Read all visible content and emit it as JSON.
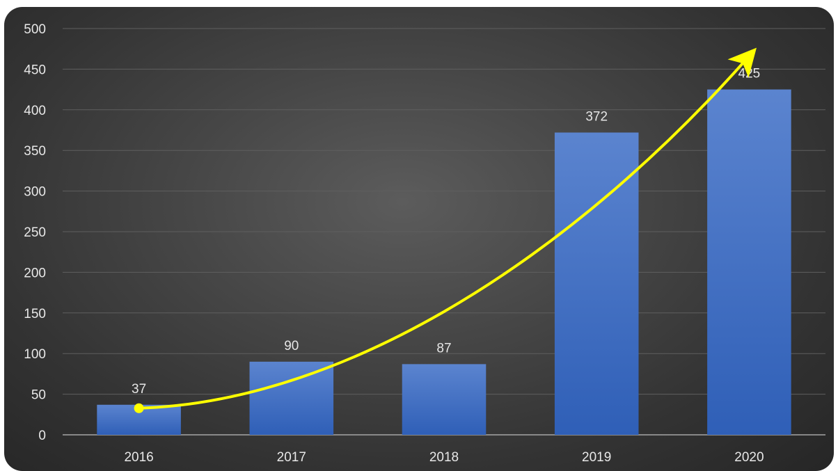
{
  "chart_data": {
    "type": "bar",
    "categories": [
      "2016",
      "2017",
      "2018",
      "2019",
      "2020"
    ],
    "values": [
      37,
      90,
      87,
      372,
      425
    ],
    "data_labels": [
      "37",
      "90",
      "87",
      "372",
      "425"
    ],
    "y_ticks": [
      "0",
      "50",
      "100",
      "150",
      "200",
      "250",
      "300",
      "350",
      "400",
      "450",
      "500"
    ],
    "ylim": [
      0,
      500
    ],
    "grid": true,
    "legend": "none",
    "bar_color_top": "#5b84cf",
    "bar_color_bottom": "#2f5fb7",
    "trend_arrow": {
      "color": "#ffff00",
      "from_category": "2016",
      "to_category": "2020"
    }
  }
}
